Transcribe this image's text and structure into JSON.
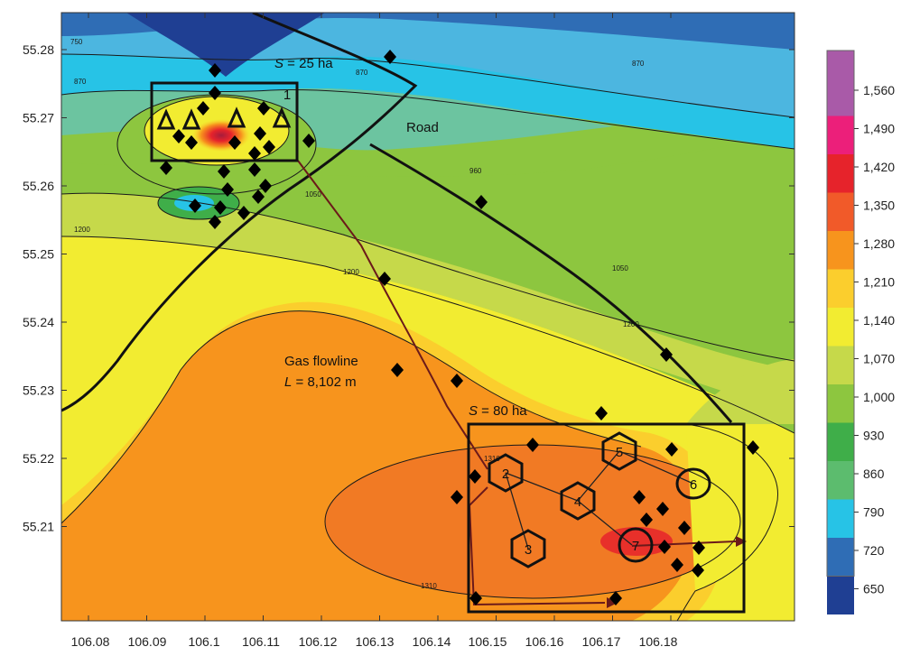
{
  "x_axis": {
    "ticks": [
      "106.08",
      "106.09",
      "106.1",
      "106.11",
      "106.12",
      "106.13",
      "106.14",
      "106.15",
      "106.16",
      "106.17",
      "106.18"
    ]
  },
  "y_axis": {
    "ticks": [
      "55.28",
      "55.27",
      "55.26",
      "55.25",
      "55.24",
      "55.23",
      "55.22",
      "55.21"
    ]
  },
  "colorbar": {
    "labels": [
      "1,560",
      "1,490",
      "1,420",
      "1,350",
      "1,280",
      "1,210",
      "1,140",
      "1,070",
      "1,000",
      "930",
      "860",
      "790",
      "720",
      "650"
    ],
    "colors": [
      "#a95aa8",
      "#ec1f7a",
      "#e6232b",
      "#f15a29",
      "#f7941d",
      "#fbce2d",
      "#f2ec31",
      "#c6d94a",
      "#8dc63f",
      "#3fae49",
      "#5cbc6e",
      "#27c3e6",
      "#2f6db5",
      "#1f3f93"
    ]
  },
  "annotations": {
    "area_small_label": "S = 25 ha",
    "area_small_label_var": "S",
    "area_small_label_rest": " = 25 ha",
    "area_large_label_var": "S",
    "area_large_label_rest": " = 80 ha",
    "road_label": "Road",
    "flowline_label": "Gas flowline",
    "flowline_length_var": "L",
    "flowline_length_rest": " = 8,102 m"
  },
  "site_numbers": [
    "1",
    "2",
    "3",
    "4",
    "5",
    "6",
    "7"
  ],
  "contour_labels": [
    "750",
    "870",
    "870",
    "870",
    "960",
    "1050",
    "1200",
    "1200",
    "1200",
    "1050",
    "1310",
    "1310"
  ],
  "colors": {
    "outline": "#111111",
    "flowline": "#6b1a1a",
    "well_marker": "#000000"
  }
}
